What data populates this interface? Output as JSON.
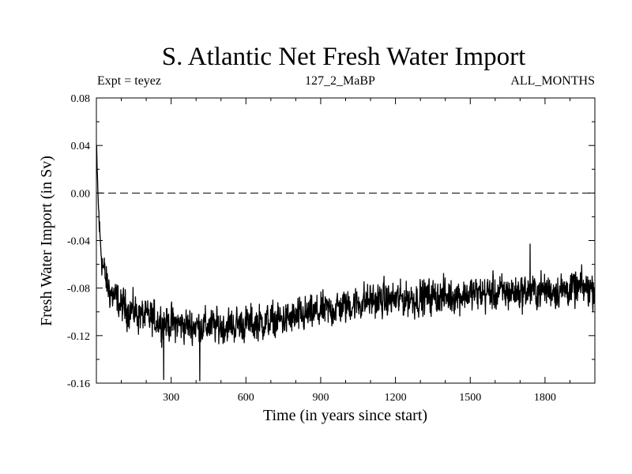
{
  "chart_data": {
    "type": "line",
    "title": "S. Atlantic Net Fresh Water Import",
    "subtitle_left": "Expt = teyez",
    "subtitle_center": "127_2_MaBP",
    "subtitle_right": "ALL_MONTHS",
    "xlabel": "Time (in years since start)",
    "ylabel": "Fresh Water Import (in Sv)",
    "xlim": [
      0,
      2000
    ],
    "ylim": [
      -0.16,
      0.08
    ],
    "xticks": [
      300,
      600,
      900,
      1200,
      1500,
      1800
    ],
    "yticks": [
      0.08,
      0.04,
      0.0,
      -0.04,
      -0.08,
      -0.12,
      -0.16
    ],
    "ytick_labels": [
      "0.08",
      "0.04",
      "0.00",
      "-0.04",
      "-0.08",
      "-0.12",
      "-0.16"
    ],
    "reference_line": {
      "y": 0.0,
      "style": "dashed"
    },
    "series": [
      {
        "name": "S. Atlantic Net Fresh Water Import",
        "color": "#000000",
        "trend_x": [
          0,
          3,
          8,
          15,
          25,
          40,
          60,
          100,
          150,
          200,
          300,
          400,
          500,
          600,
          700,
          800,
          900,
          1000,
          1100,
          1200,
          1300,
          1400,
          1500,
          1600,
          1700,
          1800,
          1900,
          2000
        ],
        "trend_y": [
          0.05,
          0.02,
          -0.01,
          -0.04,
          -0.06,
          -0.075,
          -0.085,
          -0.095,
          -0.1,
          -0.105,
          -0.11,
          -0.112,
          -0.112,
          -0.11,
          -0.108,
          -0.105,
          -0.1,
          -0.095,
          -0.09,
          -0.09,
          -0.088,
          -0.087,
          -0.085,
          -0.084,
          -0.083,
          -0.082,
          -0.081,
          -0.08
        ],
        "noise_amplitude": 0.013,
        "notable_points": [
          {
            "x": 270,
            "y": -0.157
          },
          {
            "x": 415,
            "y": -0.158
          },
          {
            "x": 1740,
            "y": -0.043
          }
        ]
      }
    ]
  }
}
